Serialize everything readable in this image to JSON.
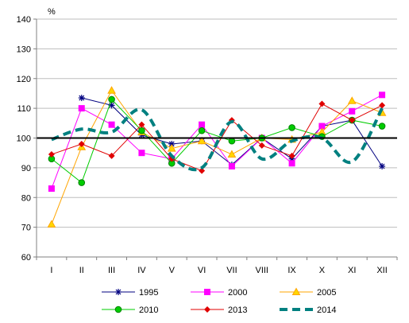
{
  "chart_data": {
    "type": "line",
    "ylabel": "%",
    "ylim": [
      60,
      140
    ],
    "yticks": [
      60,
      70,
      80,
      90,
      100,
      110,
      120,
      130,
      140
    ],
    "categories": [
      "I",
      "II",
      "III",
      "IV",
      "V",
      "VI",
      "VII",
      "VIII",
      "IX",
      "X",
      "XI",
      "XII"
    ],
    "reference_line": 100,
    "grid": "horizontal",
    "legend_position": "bottom",
    "series": [
      {
        "name": "1995",
        "color": "#000080",
        "marker": "star",
        "style": "line",
        "values": [
          null,
          113.5,
          111,
          101,
          98,
          99,
          91,
          100,
          93,
          104,
          106,
          90.5
        ]
      },
      {
        "name": "2000",
        "color": "#FF00FF",
        "marker": "square",
        "style": "line",
        "values": [
          83,
          110,
          104.5,
          95,
          93,
          104.5,
          90.5,
          100,
          91.5,
          104,
          109,
          114.5
        ]
      },
      {
        "name": "2005",
        "color": "#FFA500",
        "marker": "triangle",
        "style": "line",
        "values": [
          71,
          97,
          116,
          102,
          96.5,
          99,
          94.5,
          100,
          99.5,
          102,
          112.5,
          108.5
        ]
      },
      {
        "name": "2010",
        "color": "#00CC00",
        "marker": "circle",
        "style": "line",
        "values": [
          93,
          85,
          113,
          102.5,
          91.5,
          102.5,
          99,
          100,
          103.5,
          100.5,
          106,
          104
        ]
      },
      {
        "name": "2013",
        "color": "#E00000",
        "marker": "diamond",
        "style": "line",
        "values": [
          94.5,
          98,
          94,
          104.5,
          93,
          89,
          106,
          97.5,
          94,
          111.5,
          106,
          111
        ]
      },
      {
        "name": "2014",
        "color": "#008080",
        "marker": "none",
        "style": "dashed-smooth",
        "values": [
          99.5,
          103,
          102,
          109.5,
          94,
          90,
          105.5,
          93,
          99,
          100,
          92,
          110
        ]
      }
    ]
  }
}
